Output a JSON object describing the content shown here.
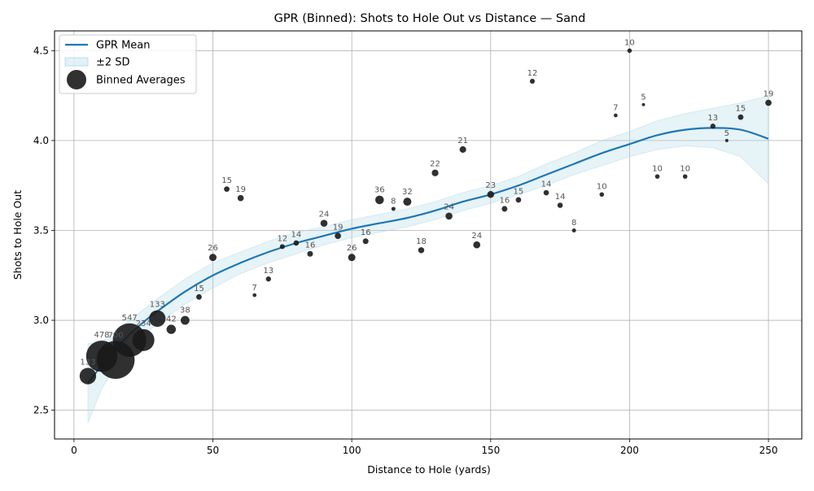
{
  "chart_data": {
    "type": "scatter",
    "title": "GPR (Binned): Shots to Hole Out vs Distance — Sand",
    "xlabel": "Distance to Hole (yards)",
    "ylabel": "Shots to Hole Out",
    "xlim": [
      -7,
      262
    ],
    "ylim": [
      2.34,
      4.61
    ],
    "xticks": [
      0,
      50,
      100,
      150,
      200,
      250
    ],
    "yticks": [
      2.5,
      3.0,
      3.5,
      4.0,
      4.5
    ],
    "grid": true,
    "legend_position": "top-left",
    "legend": [
      {
        "label": "GPR Mean",
        "kind": "line"
      },
      {
        "label": "±2 SD",
        "kind": "band"
      },
      {
        "label": "Binned Averages",
        "kind": "marker"
      }
    ],
    "colors": {
      "mean_line": "#1f77b4",
      "band_fill": "#add8e6",
      "marker": "#1a1a1a",
      "count_label": "#555555",
      "grid": "#b0b0b0"
    },
    "gpr_mean": {
      "x": [
        5,
        10,
        15,
        20,
        25,
        30,
        40,
        50,
        60,
        70,
        80,
        90,
        100,
        110,
        120,
        130,
        140,
        150,
        160,
        170,
        180,
        190,
        200,
        210,
        220,
        230,
        240,
        250
      ],
      "y": [
        2.65,
        2.75,
        2.84,
        2.92,
        2.99,
        3.05,
        3.16,
        3.25,
        3.32,
        3.38,
        3.43,
        3.47,
        3.51,
        3.54,
        3.57,
        3.61,
        3.66,
        3.7,
        3.75,
        3.81,
        3.87,
        3.93,
        3.98,
        4.03,
        4.06,
        4.07,
        4.06,
        4.01
      ]
    },
    "band_2sd": {
      "x": [
        5,
        10,
        15,
        20,
        25,
        30,
        40,
        50,
        60,
        70,
        80,
        90,
        100,
        110,
        120,
        130,
        140,
        150,
        160,
        170,
        180,
        190,
        200,
        210,
        220,
        230,
        240,
        250
      ],
      "lower": [
        2.43,
        2.62,
        2.74,
        2.84,
        2.92,
        2.98,
        3.09,
        3.18,
        3.26,
        3.32,
        3.37,
        3.42,
        3.46,
        3.49,
        3.52,
        3.56,
        3.61,
        3.65,
        3.7,
        3.75,
        3.81,
        3.86,
        3.91,
        3.95,
        3.97,
        3.96,
        3.91,
        3.76
      ],
      "upper": [
        2.87,
        2.88,
        2.94,
        3.0,
        3.06,
        3.12,
        3.23,
        3.32,
        3.38,
        3.44,
        3.49,
        3.52,
        3.56,
        3.59,
        3.62,
        3.66,
        3.71,
        3.75,
        3.8,
        3.87,
        3.93,
        4.0,
        4.05,
        4.11,
        4.15,
        4.18,
        4.21,
        4.25
      ]
    },
    "binned_points": [
      {
        "x": 5,
        "y": 2.69,
        "n": 133
      },
      {
        "x": 10,
        "y": 2.8,
        "n": 478
      },
      {
        "x": 15,
        "y": 2.78,
        "n": 700
      },
      {
        "x": 20,
        "y": 2.89,
        "n": 547
      },
      {
        "x": 25,
        "y": 2.89,
        "n": 234
      },
      {
        "x": 30,
        "y": 3.01,
        "n": 133
      },
      {
        "x": 35,
        "y": 2.95,
        "n": 42
      },
      {
        "x": 40,
        "y": 3.0,
        "n": 38
      },
      {
        "x": 45,
        "y": 3.13,
        "n": 15
      },
      {
        "x": 50,
        "y": 3.35,
        "n": 26
      },
      {
        "x": 55,
        "y": 3.73,
        "n": 15
      },
      {
        "x": 60,
        "y": 3.68,
        "n": 19
      },
      {
        "x": 65,
        "y": 3.14,
        "n": 7
      },
      {
        "x": 70,
        "y": 3.23,
        "n": 13
      },
      {
        "x": 75,
        "y": 3.41,
        "n": 12
      },
      {
        "x": 80,
        "y": 3.43,
        "n": 14
      },
      {
        "x": 85,
        "y": 3.37,
        "n": 16
      },
      {
        "x": 90,
        "y": 3.54,
        "n": 24
      },
      {
        "x": 95,
        "y": 3.47,
        "n": 19
      },
      {
        "x": 100,
        "y": 3.35,
        "n": 26
      },
      {
        "x": 105,
        "y": 3.44,
        "n": 16
      },
      {
        "x": 110,
        "y": 3.67,
        "n": 36
      },
      {
        "x": 115,
        "y": 3.62,
        "n": 8
      },
      {
        "x": 120,
        "y": 3.66,
        "n": 32
      },
      {
        "x": 125,
        "y": 3.39,
        "n": 18
      },
      {
        "x": 130,
        "y": 3.82,
        "n": 22
      },
      {
        "x": 135,
        "y": 3.58,
        "n": 24
      },
      {
        "x": 140,
        "y": 3.95,
        "n": 21
      },
      {
        "x": 145,
        "y": 3.42,
        "n": 24
      },
      {
        "x": 150,
        "y": 3.7,
        "n": 23
      },
      {
        "x": 155,
        "y": 3.62,
        "n": 16
      },
      {
        "x": 160,
        "y": 3.67,
        "n": 15
      },
      {
        "x": 165,
        "y": 4.33,
        "n": 12
      },
      {
        "x": 170,
        "y": 3.71,
        "n": 14
      },
      {
        "x": 175,
        "y": 3.64,
        "n": 14
      },
      {
        "x": 180,
        "y": 3.5,
        "n": 8
      },
      {
        "x": 190,
        "y": 3.7,
        "n": 10
      },
      {
        "x": 195,
        "y": 4.14,
        "n": 7
      },
      {
        "x": 200,
        "y": 4.5,
        "n": 10
      },
      {
        "x": 205,
        "y": 4.2,
        "n": 5
      },
      {
        "x": 210,
        "y": 3.8,
        "n": 10
      },
      {
        "x": 220,
        "y": 3.8,
        "n": 10
      },
      {
        "x": 230,
        "y": 4.08,
        "n": 13
      },
      {
        "x": 235,
        "y": 4.0,
        "n": 5
      },
      {
        "x": 240,
        "y": 4.13,
        "n": 15
      },
      {
        "x": 250,
        "y": 4.21,
        "n": 19
      }
    ]
  }
}
